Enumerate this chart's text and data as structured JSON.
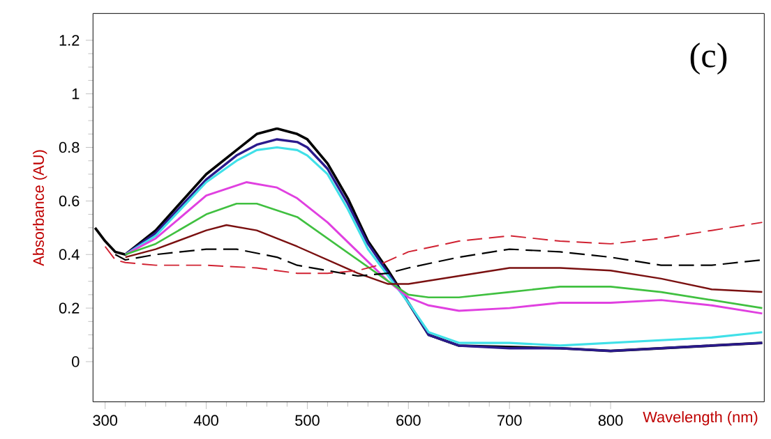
{
  "chart_data": {
    "type": "line",
    "xlabel": "Wavelength (nm)",
    "ylabel": "Absorbance (AU)",
    "annotations": [
      "(c)"
    ],
    "xlim": [
      288,
      952
    ],
    "ylim": [
      -0.15,
      1.3
    ],
    "xticks": [
      300,
      400,
      500,
      600,
      700,
      800
    ],
    "yticks": [
      0,
      0.2,
      0.4,
      0.6,
      0.8,
      1,
      1.2
    ],
    "grid": false,
    "series": [
      {
        "color": "#000000",
        "line_style": "solid",
        "x": [
          290,
          300,
          310,
          320,
          350,
          400,
          430,
          450,
          470,
          490,
          500,
          520,
          540,
          560,
          580,
          600,
          620,
          650,
          700,
          750,
          800,
          850,
          900,
          950
        ],
        "values": [
          0.5,
          0.45,
          0.41,
          0.4,
          0.49,
          0.7,
          0.79,
          0.85,
          0.87,
          0.85,
          0.83,
          0.74,
          0.61,
          0.45,
          0.34,
          0.22,
          0.1,
          0.06,
          0.055,
          0.05,
          0.04,
          0.05,
          0.06,
          0.07
        ]
      },
      {
        "color": "#2a1a8c",
        "line_style": "solid",
        "x": [
          320,
          350,
          400,
          430,
          450,
          470,
          490,
          500,
          520,
          540,
          560,
          580,
          600,
          620,
          650,
          700,
          750,
          800,
          850,
          900,
          950
        ],
        "values": [
          0.4,
          0.48,
          0.68,
          0.77,
          0.81,
          0.83,
          0.82,
          0.8,
          0.72,
          0.59,
          0.44,
          0.33,
          0.22,
          0.1,
          0.06,
          0.05,
          0.05,
          0.04,
          0.05,
          0.06,
          0.07
        ]
      },
      {
        "color": "#40e0e8",
        "line_style": "solid",
        "x": [
          320,
          350,
          400,
          430,
          450,
          470,
          490,
          500,
          520,
          540,
          560,
          580,
          600,
          620,
          650,
          700,
          750,
          800,
          850,
          900,
          950
        ],
        "values": [
          0.4,
          0.47,
          0.67,
          0.75,
          0.79,
          0.8,
          0.79,
          0.77,
          0.7,
          0.57,
          0.42,
          0.32,
          0.22,
          0.11,
          0.07,
          0.07,
          0.06,
          0.07,
          0.08,
          0.09,
          0.11
        ]
      },
      {
        "color": "#e040e0",
        "line_style": "solid",
        "x": [
          320,
          350,
          400,
          440,
          470,
          490,
          520,
          550,
          580,
          600,
          620,
          650,
          700,
          750,
          800,
          850,
          900,
          950
        ],
        "values": [
          0.4,
          0.46,
          0.62,
          0.67,
          0.65,
          0.61,
          0.52,
          0.41,
          0.3,
          0.24,
          0.21,
          0.19,
          0.2,
          0.22,
          0.22,
          0.23,
          0.21,
          0.18
        ]
      },
      {
        "color": "#40c040",
        "line_style": "solid",
        "x": [
          320,
          350,
          400,
          430,
          450,
          490,
          520,
          550,
          580,
          600,
          620,
          650,
          700,
          750,
          800,
          850,
          900,
          950
        ],
        "values": [
          0.4,
          0.44,
          0.55,
          0.59,
          0.59,
          0.54,
          0.46,
          0.38,
          0.3,
          0.25,
          0.24,
          0.24,
          0.26,
          0.28,
          0.28,
          0.26,
          0.23,
          0.2
        ]
      },
      {
        "color": "#7a1010",
        "line_style": "solid",
        "x": [
          320,
          350,
          400,
          420,
          450,
          490,
          520,
          550,
          580,
          600,
          650,
          700,
          750,
          800,
          850,
          900,
          950
        ],
        "values": [
          0.39,
          0.42,
          0.49,
          0.51,
          0.49,
          0.43,
          0.38,
          0.33,
          0.29,
          0.29,
          0.32,
          0.35,
          0.35,
          0.34,
          0.31,
          0.27,
          0.26
        ]
      },
      {
        "color": "#000000",
        "line_style": "dashed",
        "x": [
          310,
          320,
          350,
          400,
          430,
          470,
          490,
          520,
          550,
          580,
          600,
          650,
          700,
          750,
          800,
          850,
          900,
          950
        ],
        "values": [
          0.4,
          0.38,
          0.4,
          0.42,
          0.42,
          0.39,
          0.36,
          0.34,
          0.32,
          0.33,
          0.35,
          0.39,
          0.42,
          0.41,
          0.39,
          0.36,
          0.36,
          0.38
        ]
      },
      {
        "color": "#d02030",
        "line_style": "dashed",
        "x": [
          300,
          310,
          320,
          350,
          400,
          450,
          490,
          520,
          550,
          570,
          600,
          650,
          700,
          750,
          800,
          850,
          900,
          950
        ],
        "values": [
          0.43,
          0.38,
          0.37,
          0.36,
          0.36,
          0.35,
          0.33,
          0.33,
          0.34,
          0.36,
          0.41,
          0.45,
          0.47,
          0.45,
          0.44,
          0.46,
          0.49,
          0.52
        ]
      }
    ]
  }
}
